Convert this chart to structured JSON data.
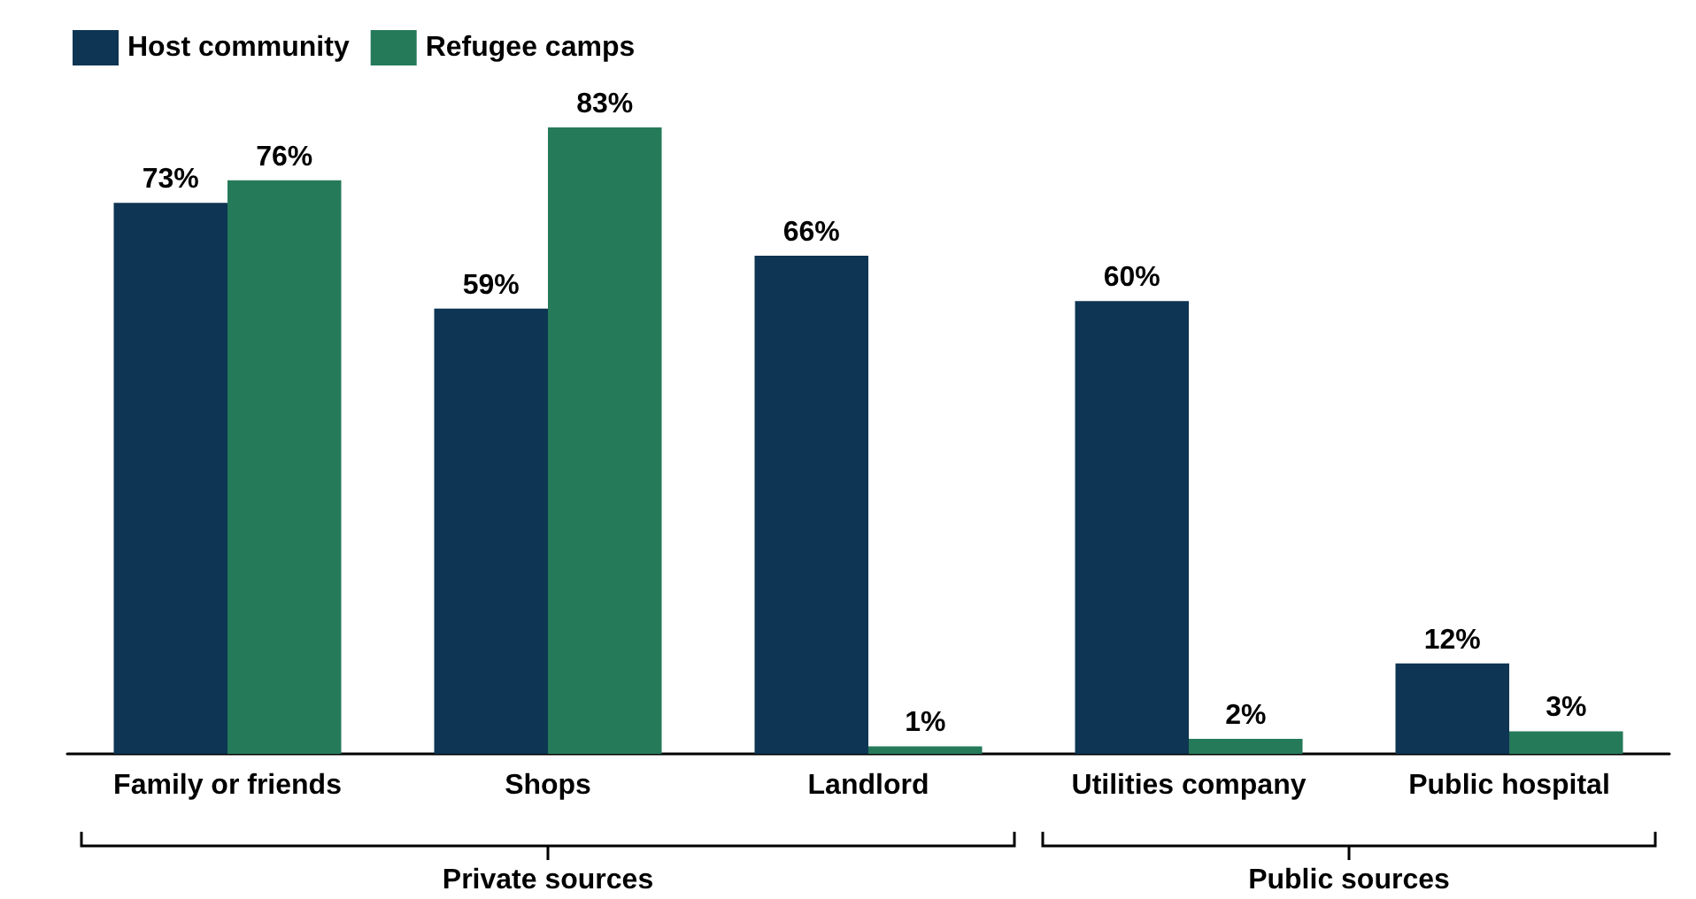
{
  "chart_data": {
    "type": "bar",
    "categories": [
      "Family or friends",
      "Shops",
      "Landlord",
      "Utilities company",
      "Public hospital"
    ],
    "series": [
      {
        "name": "Host community",
        "color": "#0e3553",
        "values": [
          73,
          59,
          66,
          60,
          12
        ],
        "value_labels": [
          "73%",
          "59%",
          "66%",
          "60%",
          "12%"
        ]
      },
      {
        "name": "Refugee camps",
        "color": "#257a5a",
        "values": [
          76,
          83,
          1,
          2,
          3
        ],
        "value_labels": [
          "76%",
          "83%",
          "1%",
          "2%",
          "3%"
        ]
      }
    ],
    "annotations": [
      "Private sources",
      "Public sources"
    ],
    "legend": "top left",
    "grid": false
  }
}
